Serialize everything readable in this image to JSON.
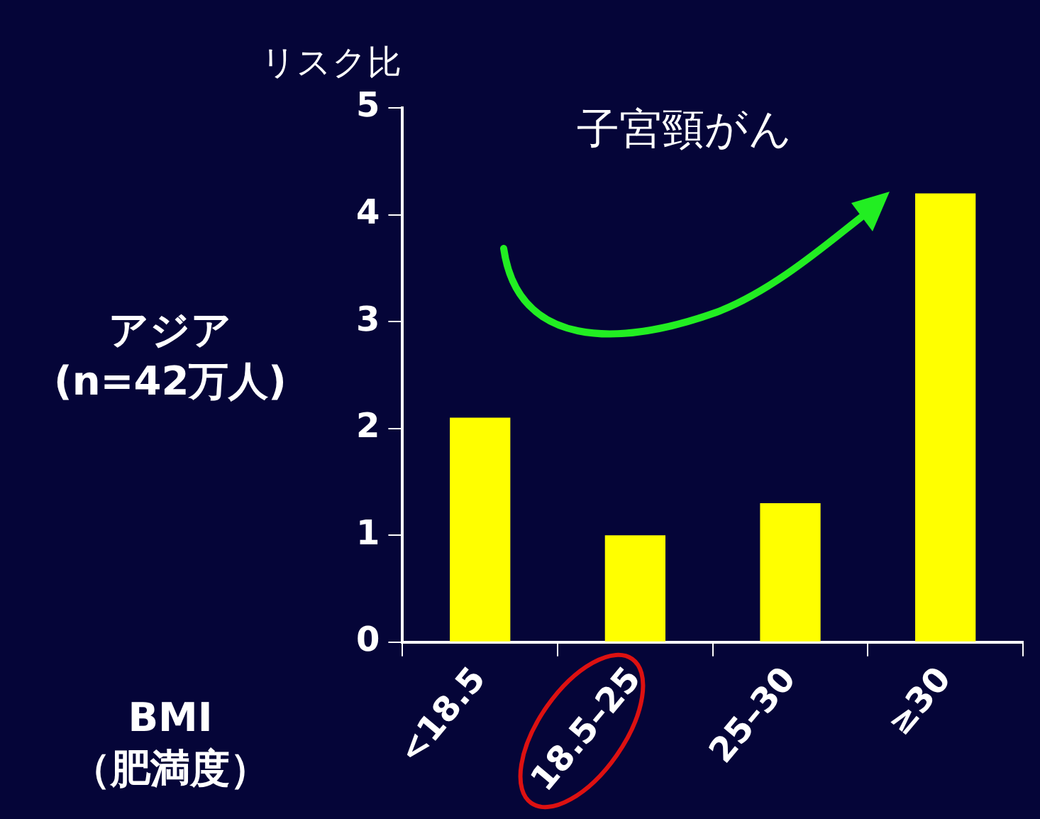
{
  "chart_data": {
    "type": "bar",
    "title": "子宮頸がん",
    "ylabel": "リスク比",
    "categories": [
      "<18.5",
      "18.5–25",
      "25–30",
      "≥30"
    ],
    "values": [
      2.1,
      1.0,
      1.3,
      4.2
    ],
    "color": "#ffff00",
    "ylim": [
      0,
      5
    ],
    "yticks": [
      0,
      1,
      2,
      3,
      4,
      5
    ],
    "annotations": [
      "アジア\n(n=42万人)",
      "BMI\n（肥満度）"
    ]
  }
}
